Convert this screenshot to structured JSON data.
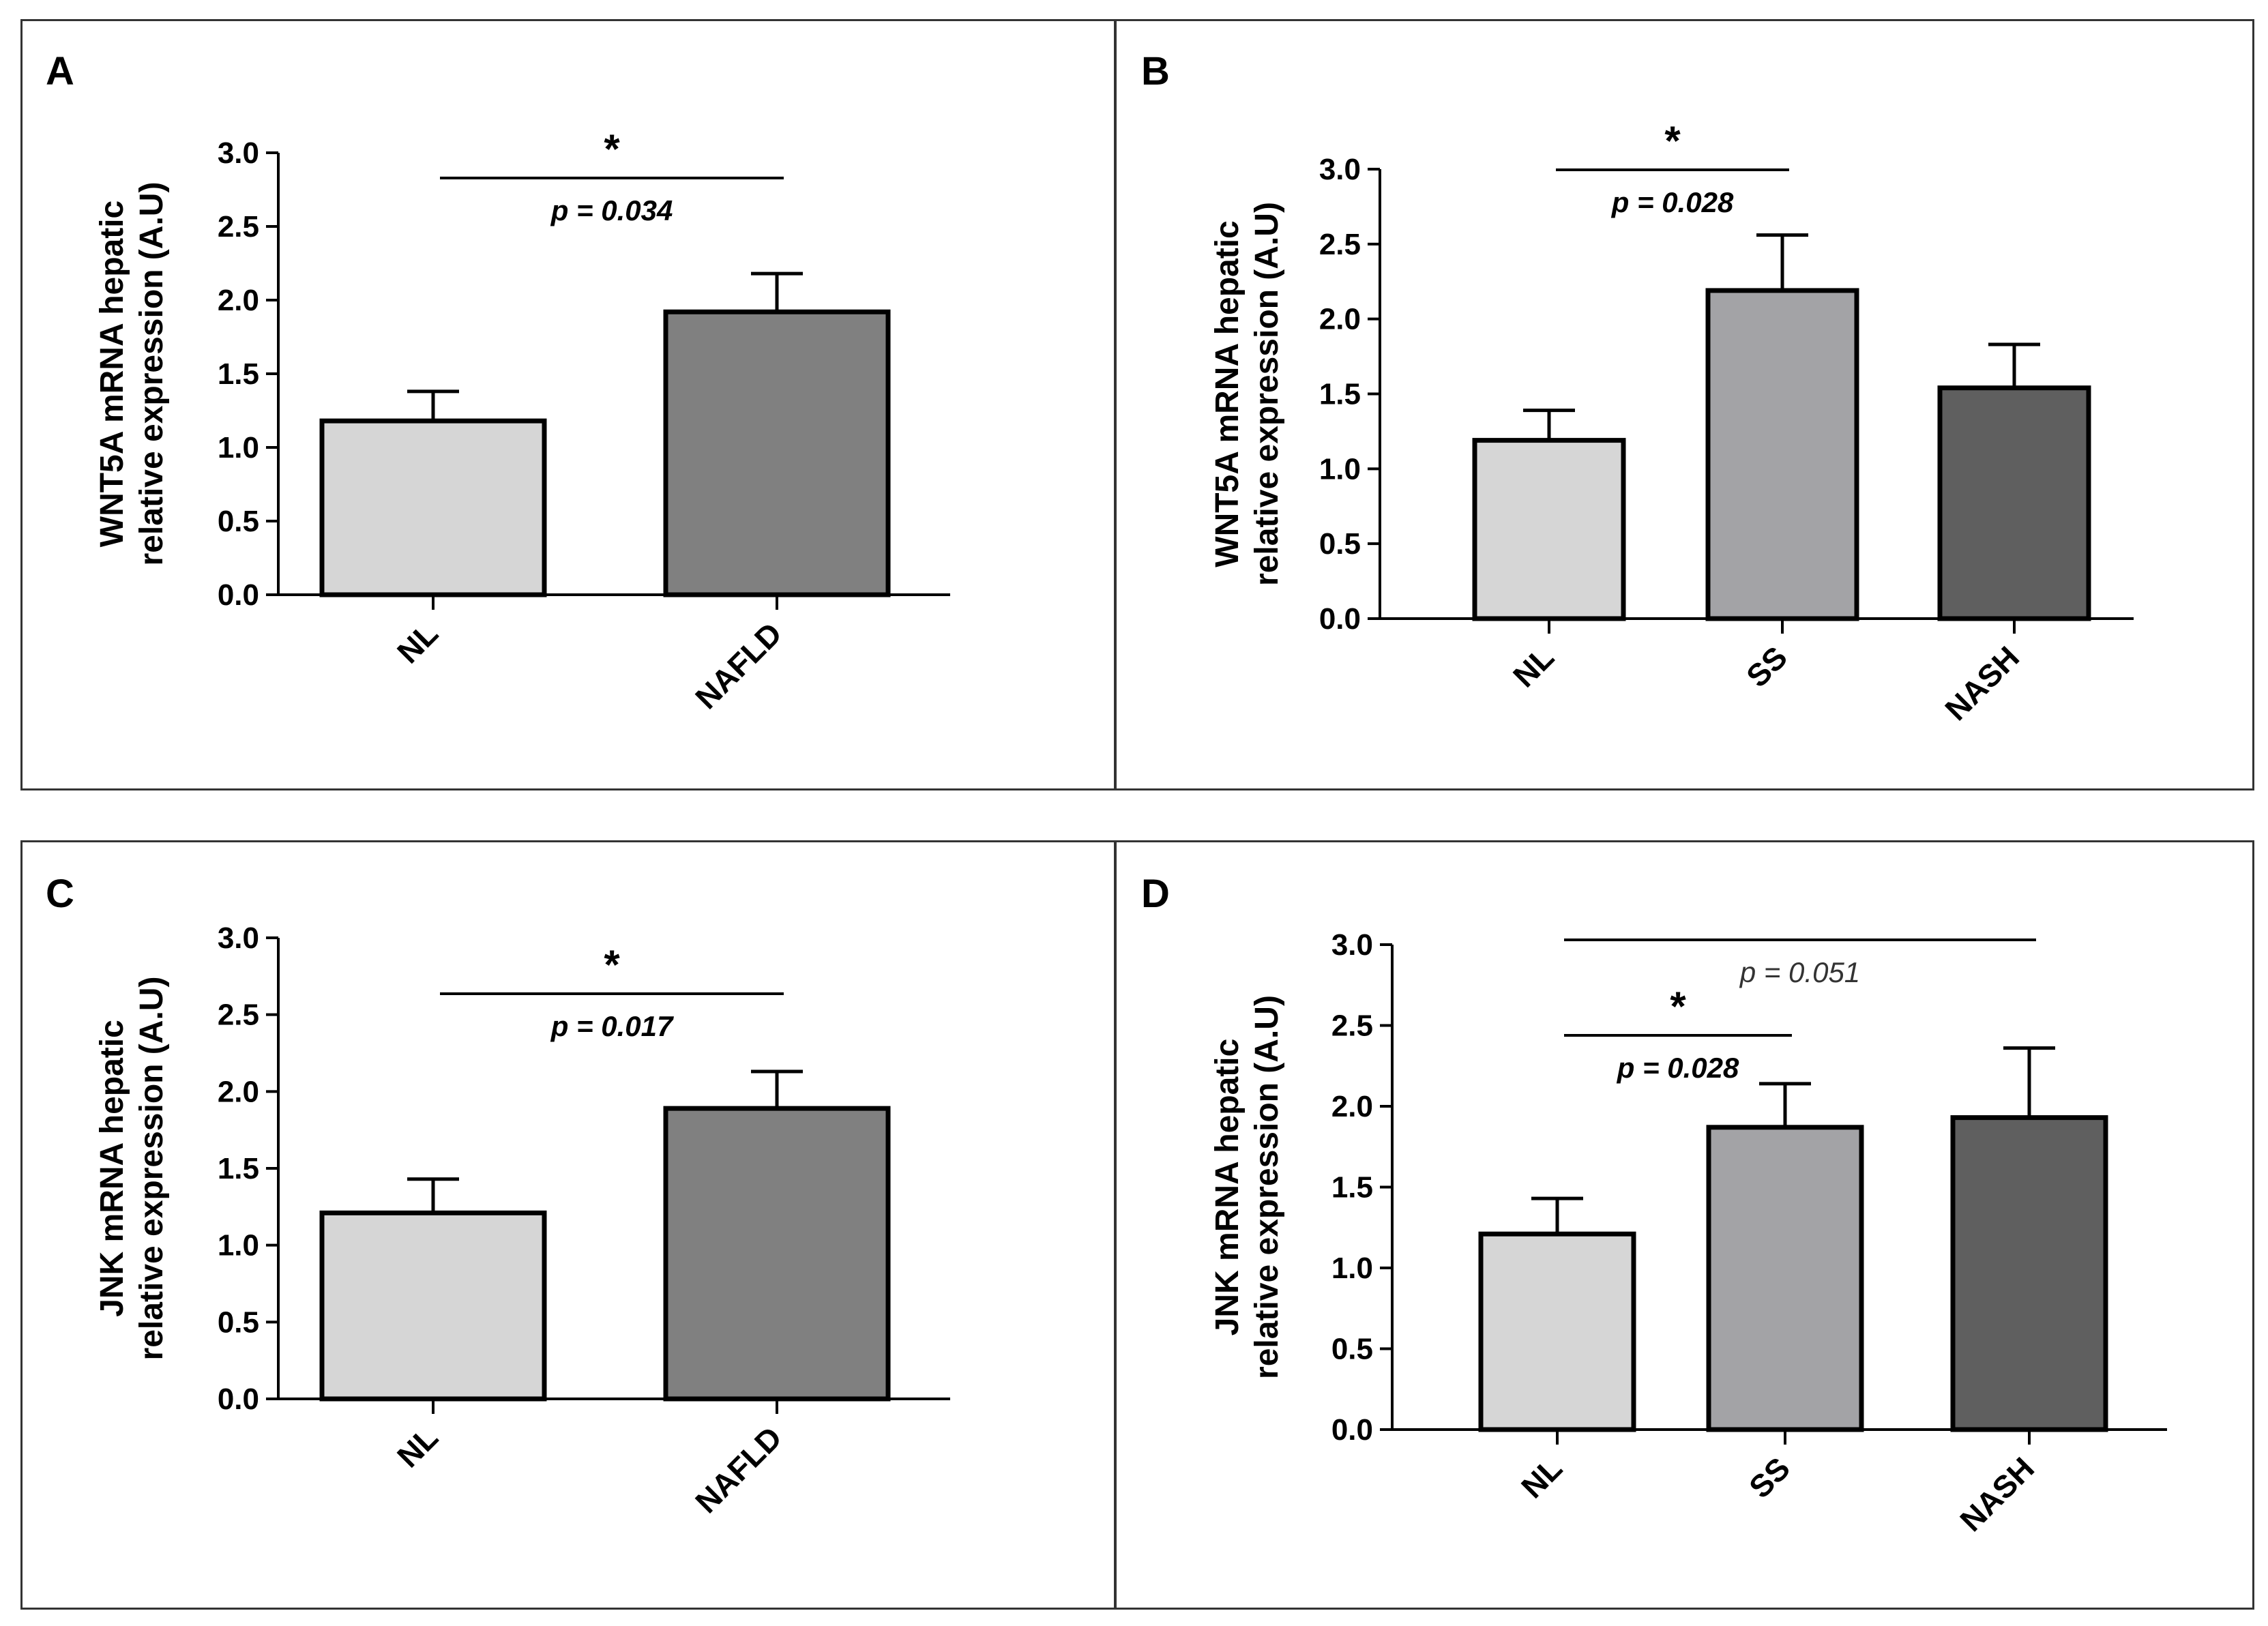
{
  "colors": {
    "NL": "#d6d6d6",
    "NAFLD": "#808080",
    "SS": "#a3a3a6",
    "NASH": "#5f5f5f",
    "stroke": "#000000"
  },
  "chart_data": [
    {
      "panel": "A",
      "type": "bar",
      "ylabel_line1": "WNT5A mRNA hepatic",
      "ylabel_line2": "relative expression (A.U)",
      "ylim": [
        0,
        3.0
      ],
      "yticks": [
        "0.0",
        "0.5",
        "1.0",
        "1.5",
        "2.0",
        "2.5",
        "3.0"
      ],
      "categories": [
        "NL",
        "NAFLD"
      ],
      "values": [
        1.18,
        1.92
      ],
      "errors": [
        0.2,
        0.26
      ],
      "colorKeys": [
        "NL",
        "NAFLD"
      ],
      "annotations": [
        {
          "from": 0,
          "to": 1,
          "star": "*",
          "p": "p = 0.034",
          "bold": true,
          "level": 0
        }
      ]
    },
    {
      "panel": "B",
      "type": "bar",
      "ylabel_line1": "WNT5A mRNA hepatic",
      "ylabel_line2": "relative expression (A.U)",
      "ylim": [
        0,
        3.0
      ],
      "yticks": [
        "0.0",
        "0.5",
        "1.0",
        "1.5",
        "2.0",
        "2.5",
        "3.0"
      ],
      "categories": [
        "NL",
        "SS",
        "NASH"
      ],
      "values": [
        1.19,
        2.19,
        1.54
      ],
      "errors": [
        0.2,
        0.37,
        0.29
      ],
      "colorKeys": [
        "NL",
        "SS",
        "NASH"
      ],
      "annotations": [
        {
          "from": 0,
          "to": 1,
          "star": "*",
          "p": "p = 0.028",
          "bold": true,
          "level": 0
        }
      ]
    },
    {
      "panel": "C",
      "type": "bar",
      "ylabel_line1": "JNK mRNA hepatic",
      "ylabel_line2": "relative expression (A.U)",
      "ylim": [
        0,
        3.0
      ],
      "yticks": [
        "0.0",
        "0.5",
        "1.0",
        "1.5",
        "2.0",
        "2.5",
        "3.0"
      ],
      "categories": [
        "NL",
        "NAFLD"
      ],
      "values": [
        1.21,
        1.89
      ],
      "errors": [
        0.22,
        0.24
      ],
      "colorKeys": [
        "NL",
        "NAFLD"
      ],
      "annotations": [
        {
          "from": 0,
          "to": 1,
          "star": "*",
          "p": "p = 0.017",
          "bold": true,
          "level": 0
        }
      ]
    },
    {
      "panel": "D",
      "type": "bar",
      "ylabel_line1": "JNK mRNA hepatic",
      "ylabel_line2": "relative expression (A.U)",
      "ylim": [
        0,
        3.0
      ],
      "yticks": [
        "0.0",
        "0.5",
        "1.0",
        "1.5",
        "2.0",
        "2.5",
        "3.0"
      ],
      "categories": [
        "NL",
        "SS",
        "NASH"
      ],
      "values": [
        1.21,
        1.87,
        1.93
      ],
      "errors": [
        0.22,
        0.27,
        0.43
      ],
      "colorKeys": [
        "NL",
        "SS",
        "NASH"
      ],
      "annotations": [
        {
          "from": 0,
          "to": 1,
          "star": "*",
          "p": "p = 0.028",
          "bold": true,
          "level": 0
        },
        {
          "from": 0,
          "to": 2,
          "star": "",
          "p": "p = 0.051",
          "bold": false,
          "level": 1
        }
      ]
    }
  ]
}
